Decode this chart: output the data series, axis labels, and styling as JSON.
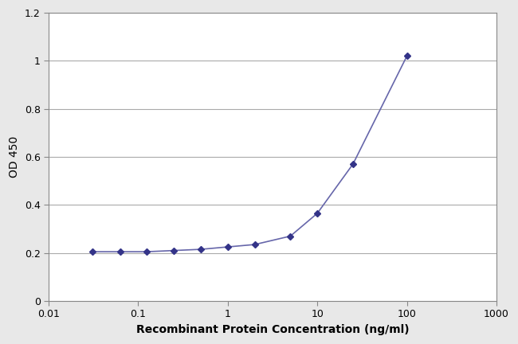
{
  "x": [
    0.031,
    0.063,
    0.125,
    0.25,
    0.5,
    1.0,
    2.0,
    5.0,
    10.0,
    25.0,
    100.0
  ],
  "y": [
    0.205,
    0.205,
    0.205,
    0.21,
    0.215,
    0.225,
    0.235,
    0.27,
    0.365,
    0.57,
    1.02
  ],
  "line_color": "#6666aa",
  "marker_color": "#333388",
  "marker_style": "D",
  "marker_size": 4,
  "line_width": 1.2,
  "xlabel": "Recombinant Protein Concentration (ng/ml)",
  "ylabel": "OD 450",
  "xlim_log": [
    0.01,
    1000
  ],
  "ylim": [
    0,
    1.2
  ],
  "yticks": [
    0,
    0.2,
    0.4,
    0.6,
    0.8,
    1.0,
    1.2
  ],
  "xtick_labels": [
    "0.01",
    "0.1",
    "1",
    "10",
    "100",
    "1000"
  ],
  "xtick_positions": [
    0.01,
    0.1,
    1,
    10,
    100,
    1000
  ],
  "background_color": "#e8e8e8",
  "plot_bg_color": "#ffffff",
  "grid_color": "#aaaaaa",
  "xlabel_fontsize": 10,
  "ylabel_fontsize": 10,
  "tick_fontsize": 9,
  "fig_width": 6.5,
  "fig_height": 4.32,
  "dpi": 100
}
